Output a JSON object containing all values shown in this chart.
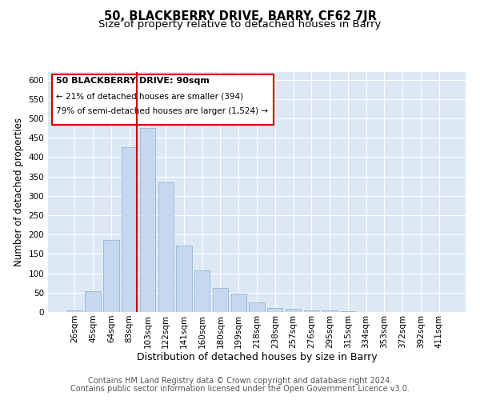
{
  "title": "50, BLACKBERRY DRIVE, BARRY, CF62 7JR",
  "subtitle": "Size of property relative to detached houses in Barry",
  "xlabel": "Distribution of detached houses by size in Barry",
  "ylabel": "Number of detached properties",
  "categories": [
    "26sqm",
    "45sqm",
    "64sqm",
    "83sqm",
    "103sqm",
    "122sqm",
    "141sqm",
    "160sqm",
    "180sqm",
    "199sqm",
    "218sqm",
    "238sqm",
    "257sqm",
    "276sqm",
    "295sqm",
    "315sqm",
    "334sqm",
    "353sqm",
    "372sqm",
    "392sqm",
    "411sqm"
  ],
  "values": [
    5,
    53,
    185,
    425,
    475,
    335,
    172,
    108,
    62,
    47,
    25,
    10,
    9,
    5,
    4,
    2,
    1,
    0.5,
    0.5,
    0.5,
    0.5
  ],
  "bar_color": "#c5d8f0",
  "bar_edge_color": "#8aafd0",
  "background_color": "#dde8f5",
  "grid_color": "#ffffff",
  "annotation_box_color": "#cc0000",
  "property_line_color": "#cc0000",
  "annotation_title": "50 BLACKBERRY DRIVE: 90sqm",
  "annotation_line1": "← 21% of detached houses are smaller (394)",
  "annotation_line2": "79% of semi-detached houses are larger (1,524) →",
  "ylim": [
    0,
    620
  ],
  "yticks": [
    0,
    50,
    100,
    150,
    200,
    250,
    300,
    350,
    400,
    450,
    500,
    550,
    600
  ],
  "footer_line1": "Contains HM Land Registry data © Crown copyright and database right 2024.",
  "footer_line2": "Contains public sector information licensed under the Open Government Licence v3.0.",
  "title_fontsize": 10.5,
  "subtitle_fontsize": 9.5,
  "xlabel_fontsize": 9,
  "ylabel_fontsize": 8.5,
  "tick_fontsize": 7.5,
  "footer_fontsize": 7
}
